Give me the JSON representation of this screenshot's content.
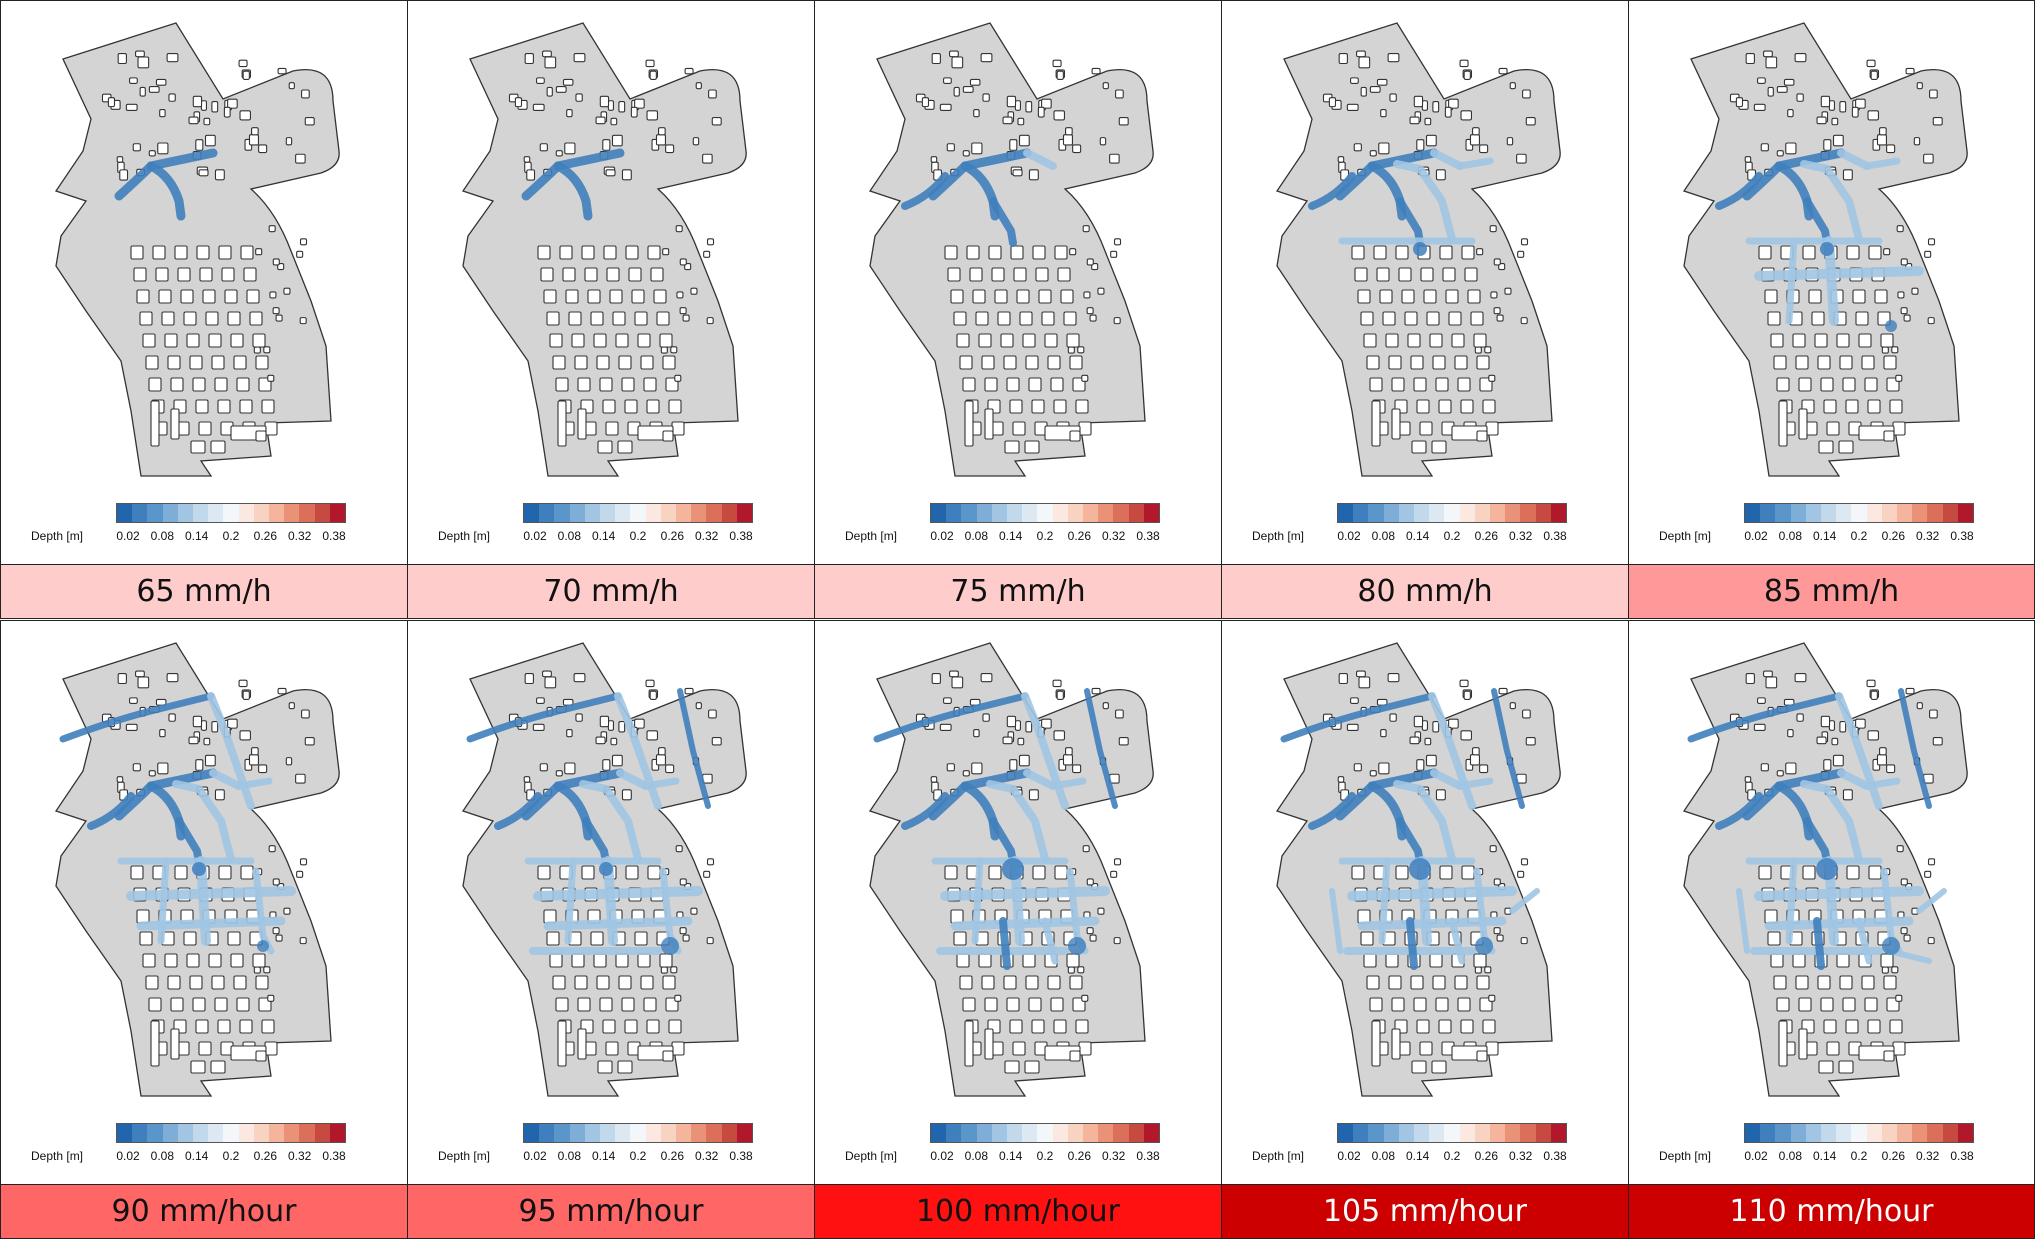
{
  "legend": {
    "label": "Depth [m]",
    "ticks": [
      "0.02",
      "0.08",
      "0.14",
      "0.2",
      "0.26",
      "0.32",
      "0.38"
    ],
    "swatches": [
      "#2166ac",
      "#3f7fbd",
      "#5b96cb",
      "#7eadd8",
      "#a1c5e3",
      "#c2d9ec",
      "#dce9f3",
      "#f4f7fa",
      "#fbe8e0",
      "#f9d3c1",
      "#f4b59c",
      "#ea9278",
      "#dc6f59",
      "#c74a40",
      "#b2182b"
    ]
  },
  "panels": [
    {
      "label": "65 mm/h",
      "label_bg": "#ffcccc",
      "label_color": "#111111",
      "flood_level": 1
    },
    {
      "label": "70 mm/h",
      "label_bg": "#ffcccc",
      "label_color": "#111111",
      "flood_level": 1
    },
    {
      "label": "75 mm/h",
      "label_bg": "#ffcccc",
      "label_color": "#111111",
      "flood_level": 2
    },
    {
      "label": "80 mm/h",
      "label_bg": "#ffcccc",
      "label_color": "#111111",
      "flood_level": 3
    },
    {
      "label": "85 mm/h",
      "label_bg": "#ff9999",
      "label_color": "#111111",
      "flood_level": 4
    },
    {
      "label": "90 mm/hour",
      "label_bg": "#ff6666",
      "label_color": "#111111",
      "flood_level": 5
    },
    {
      "label": "95 mm/hour",
      "label_bg": "#ff6666",
      "label_color": "#111111",
      "flood_level": 6
    },
    {
      "label": "100 mm/hour",
      "label_bg": "#ff1111",
      "label_color": "#111111",
      "flood_level": 7
    },
    {
      "label": "105 mm/hour",
      "label_bg": "#cc0000",
      "label_color": "#ffffff",
      "flood_level": 8
    },
    {
      "label": "110 mm/hour",
      "label_bg": "#cc0000",
      "label_color": "#ffffff",
      "flood_level": 9
    }
  ]
}
